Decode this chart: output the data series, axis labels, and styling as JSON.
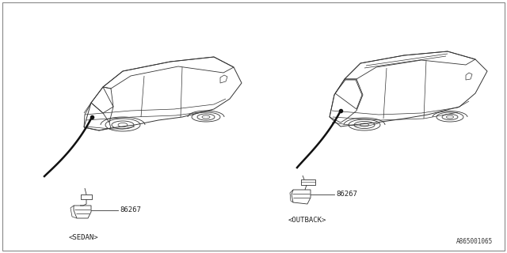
{
  "bg_color": "#ffffff",
  "border_color": "#aaaaaa",
  "line_color": "#333333",
  "part_number": "86267",
  "label_sedan": "<SEDAN>",
  "label_outback": "<OUTBACK>",
  "diagram_id": "A865001065",
  "fig_width": 6.4,
  "fig_height": 3.2,
  "dpi": 100
}
